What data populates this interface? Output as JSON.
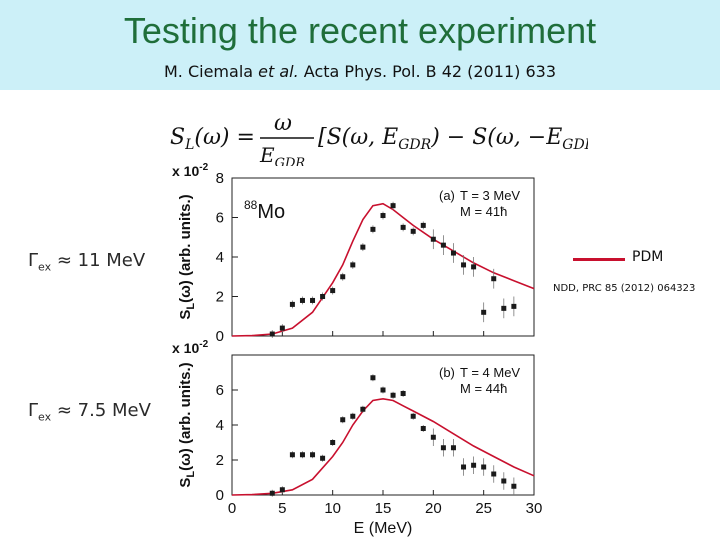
{
  "slide": {
    "title": "Testing the recent experiment",
    "citation_authors": "M. Ciemala ",
    "citation_etal": "et al.",
    "citation_rest": " Acta Phys. Pol. B 42 (2011) 633",
    "gamma_top": "Γex ≈ 11 MeV",
    "gamma_bottom": "Γex ≈ 7.5 MeV",
    "legend_label": "PDM",
    "reference": "NDD, PRC 85 (2012) 064323"
  },
  "colors": {
    "header_bg": "#ccf0f8",
    "title": "#1f6e3a",
    "model_curve": "#c8102e",
    "data_points": "#1a1a1a"
  },
  "chart_data": [
    {
      "type": "scatter",
      "panel": "(a)",
      "nucleus": "88Mo",
      "params": [
        "T = 3 MeV",
        "M = 41ħ"
      ],
      "ylabel": "SL(ω) (arb. units.)",
      "yscale_label": "x 10-2",
      "xlim": [
        0,
        30
      ],
      "ylim": [
        0,
        8
      ],
      "yticks": [
        0,
        2,
        4,
        6,
        8
      ],
      "series": [
        {
          "name": "PDM",
          "style": "line",
          "x": [
            0,
            2,
            4,
            6,
            8,
            10,
            11,
            12,
            13,
            14,
            15,
            16,
            17,
            18,
            20,
            22,
            24,
            26,
            28,
            30
          ],
          "y": [
            0,
            0.02,
            0.1,
            0.4,
            1.2,
            2.7,
            3.6,
            4.8,
            5.9,
            6.6,
            6.7,
            6.4,
            6.0,
            5.6,
            4.9,
            4.3,
            3.7,
            3.2,
            2.8,
            2.4
          ]
        },
        {
          "name": "data",
          "style": "points",
          "x": [
            4,
            5,
            6,
            7,
            8,
            9,
            10,
            11,
            12,
            13,
            14,
            15,
            16,
            17,
            18,
            19,
            20,
            21,
            22,
            23,
            24,
            25,
            26,
            27,
            28
          ],
          "y": [
            0.1,
            0.4,
            1.6,
            1.8,
            1.8,
            2.0,
            2.3,
            3.0,
            3.6,
            4.5,
            5.4,
            6.1,
            6.6,
            5.5,
            5.3,
            5.6,
            4.9,
            4.6,
            4.2,
            3.6,
            3.5,
            1.2,
            2.9,
            1.4,
            1.5
          ]
        }
      ]
    },
    {
      "type": "scatter",
      "panel": "(b)",
      "params": [
        "T = 4 MeV",
        "M = 44ħ"
      ],
      "xlabel": "E  (MeV)",
      "ylabel": "SL(ω) (arb. units.)",
      "yscale_label": "x 10-2",
      "xlim": [
        0,
        30
      ],
      "ylim": [
        0,
        8
      ],
      "xticks": [
        0,
        5,
        10,
        15,
        20,
        25,
        30
      ],
      "yticks": [
        0,
        2,
        4,
        6
      ],
      "series": [
        {
          "name": "PDM",
          "style": "line",
          "x": [
            0,
            2,
            4,
            6,
            8,
            10,
            11,
            12,
            13,
            14,
            15,
            16,
            17,
            18,
            20,
            22,
            24,
            26,
            28,
            30
          ],
          "y": [
            0,
            0.02,
            0.1,
            0.3,
            0.9,
            2.2,
            3.0,
            4.0,
            4.8,
            5.4,
            5.5,
            5.4,
            5.1,
            4.8,
            4.2,
            3.5,
            2.8,
            2.2,
            1.6,
            1.1
          ]
        },
        {
          "name": "data",
          "style": "points",
          "x": [
            4,
            5,
            6,
            7,
            8,
            9,
            10,
            11,
            12,
            13,
            14,
            15,
            16,
            17,
            18,
            19,
            20,
            21,
            22,
            23,
            24,
            25,
            26,
            27,
            28
          ],
          "y": [
            0.1,
            0.3,
            2.3,
            2.3,
            2.3,
            2.1,
            3.0,
            4.3,
            4.5,
            4.9,
            6.7,
            6.0,
            5.7,
            5.8,
            4.5,
            3.8,
            3.3,
            2.7,
            2.7,
            1.6,
            1.7,
            1.6,
            1.2,
            0.8,
            0.5
          ]
        }
      ]
    }
  ]
}
